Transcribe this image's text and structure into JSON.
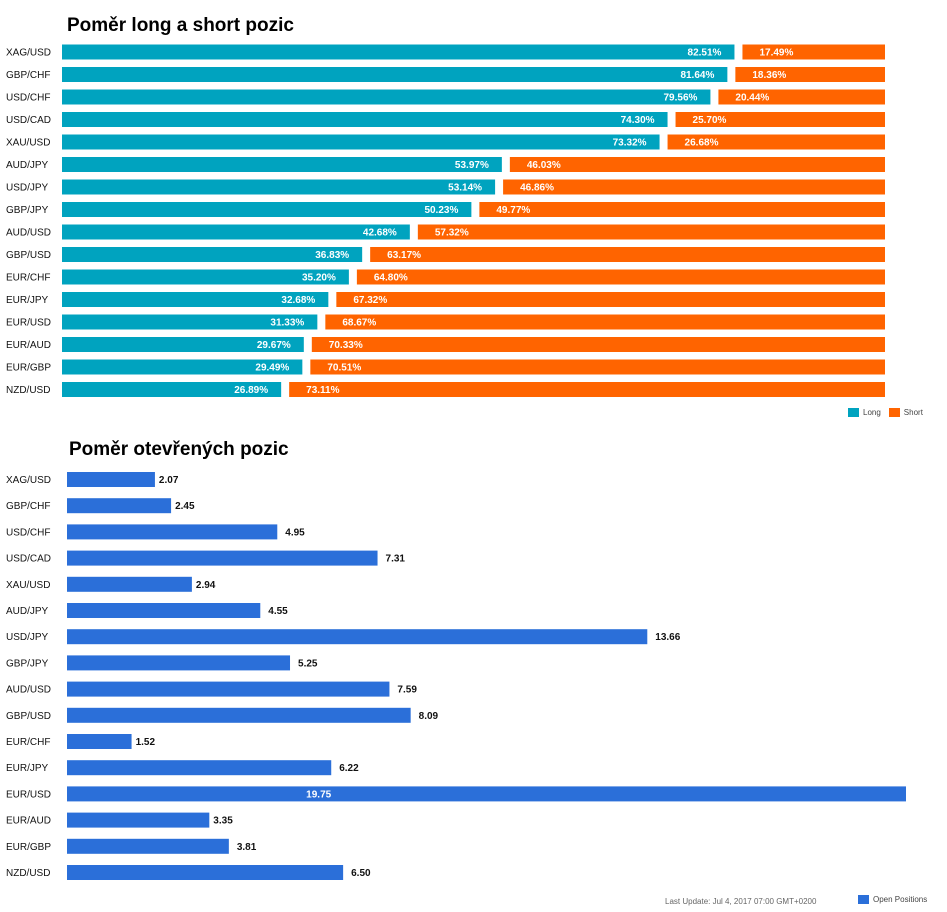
{
  "chart_data": [
    {
      "type": "bar",
      "orientation": "horizontal",
      "stacked": true,
      "title": "Poměr long a short pozic",
      "categories": [
        "XAG/USD",
        "GBP/CHF",
        "USD/CHF",
        "USD/CAD",
        "XAU/USD",
        "AUD/JPY",
        "USD/JPY",
        "GBP/JPY",
        "AUD/USD",
        "GBP/USD",
        "EUR/CHF",
        "EUR/JPY",
        "EUR/USD",
        "EUR/AUD",
        "EUR/GBP",
        "NZD/USD"
      ],
      "series": [
        {
          "name": "Long",
          "color": "#00a3bf",
          "values": [
            82.51,
            81.64,
            79.56,
            74.3,
            73.32,
            53.97,
            53.14,
            50.23,
            42.68,
            36.83,
            35.2,
            32.68,
            31.33,
            29.67,
            29.49,
            26.89
          ]
        },
        {
          "name": "Short",
          "color": "#ff6400",
          "values": [
            17.49,
            18.36,
            20.44,
            25.7,
            26.68,
            46.03,
            46.86,
            49.77,
            57.32,
            63.17,
            64.8,
            67.32,
            68.67,
            70.33,
            70.51,
            73.11
          ]
        }
      ],
      "value_suffix": "%",
      "xlim": [
        0,
        100
      ],
      "legend_position": "bottom-right",
      "grid": false
    },
    {
      "type": "bar",
      "orientation": "horizontal",
      "title": "Poměr otevřených pozic",
      "categories": [
        "XAG/USD",
        "GBP/CHF",
        "USD/CHF",
        "USD/CAD",
        "XAU/USD",
        "AUD/JPY",
        "USD/JPY",
        "GBP/JPY",
        "AUD/USD",
        "GBP/USD",
        "EUR/CHF",
        "EUR/JPY",
        "EUR/USD",
        "EUR/AUD",
        "EUR/GBP",
        "NZD/USD"
      ],
      "series": [
        {
          "name": "Open Positions",
          "color": "#2b6fd9",
          "values": [
            2.07,
            2.45,
            4.95,
            7.31,
            2.94,
            4.55,
            13.66,
            5.25,
            7.59,
            8.09,
            1.52,
            6.22,
            19.75,
            3.35,
            3.81,
            6.5
          ]
        }
      ],
      "xlim": [
        0,
        19.75
      ],
      "legend_position": "bottom-right",
      "grid": false,
      "footnote": "Last Update: Jul 4, 2017 07:00 GMT+0200"
    }
  ]
}
